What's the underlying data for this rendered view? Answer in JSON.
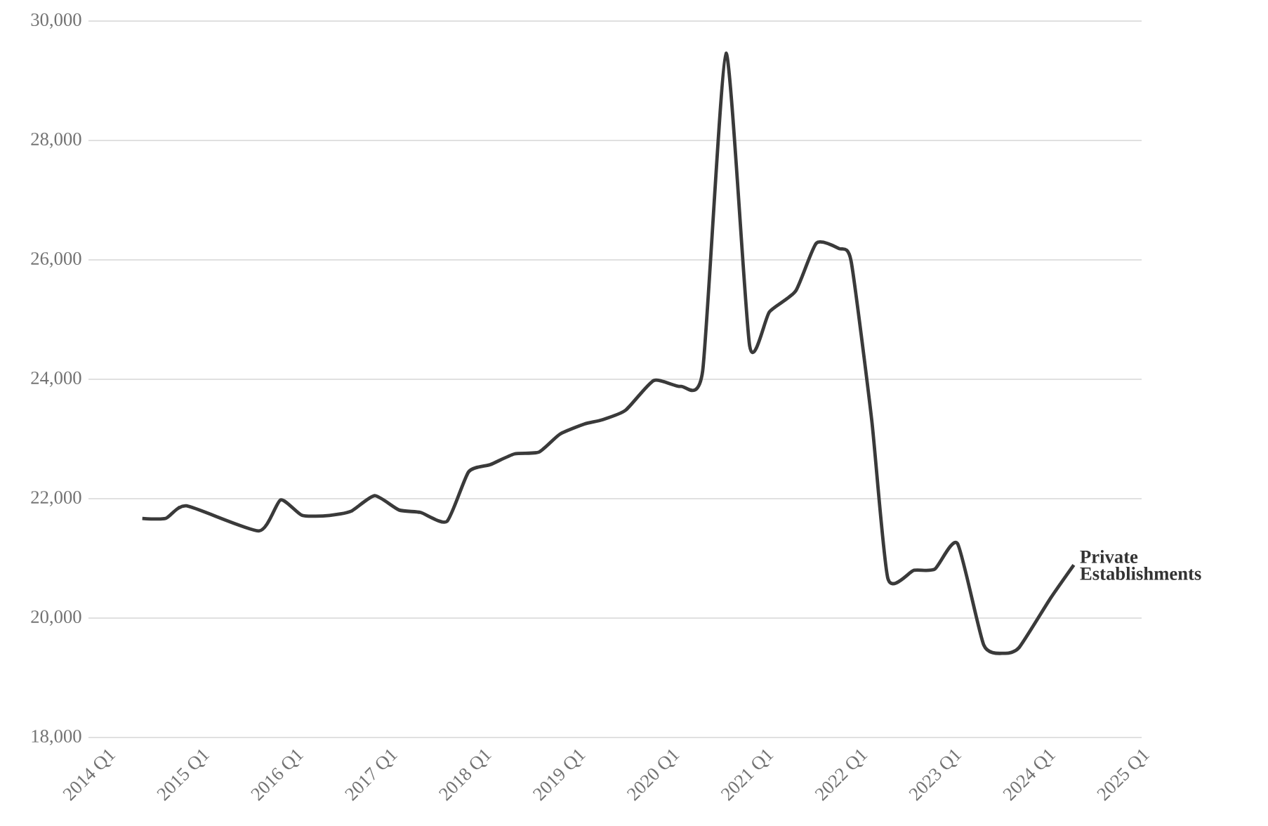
{
  "chart_data": {
    "type": "line",
    "series": [
      {
        "name": "Private Establishments",
        "color": "#3a3a3a",
        "x": [
          "2014-05-16",
          "2014-08-15",
          "2014-11-04",
          "2015-08-12",
          "2015-11-04",
          "2016-01-27",
          "2016-05-12",
          "2016-08-04",
          "2016-11-04",
          "2017-02-07",
          "2017-05-01",
          "2017-08-12",
          "2017-11-04",
          "2018-01-27",
          "2018-05-01",
          "2018-08-04",
          "2018-10-24",
          "2019-01-27",
          "2019-04-06",
          "2019-07-06",
          "2019-10-24",
          "2020-02-07",
          "2020-05-01",
          "2020-07-31",
          "2020-10-31",
          "2021-01-16",
          "2021-04-28",
          "2021-07-17",
          "2021-10-13",
          "2021-11-29",
          "2022-02-17",
          "2022-04-21",
          "2022-07-31",
          "2022-10-20",
          "2023-01-16",
          "2023-04-28",
          "2023-07-17",
          "2023-09-13",
          "2024-01-12",
          "2024-04-12"
        ],
        "values": [
          21670,
          21670,
          21880,
          21460,
          21980,
          21720,
          21720,
          21790,
          22050,
          21810,
          21770,
          21620,
          22450,
          22570,
          22750,
          22780,
          23080,
          23250,
          23320,
          23480,
          23980,
          23880,
          24140,
          29460,
          24560,
          25130,
          25480,
          26280,
          26190,
          25980,
          23320,
          20660,
          20800,
          20820,
          21250,
          19550,
          19410,
          19510,
          20330,
          20890
        ]
      }
    ],
    "xlim": [
      "2013-10-19",
      "2025-01-01"
    ],
    "xticks": [
      {
        "value": "2014-01-01",
        "label": "2014 Q1"
      },
      {
        "value": "2015-01-01",
        "label": "2015 Q1"
      },
      {
        "value": "2016-01-01",
        "label": "2016 Q1"
      },
      {
        "value": "2017-01-01",
        "label": "2017 Q1"
      },
      {
        "value": "2018-01-01",
        "label": "2018 Q1"
      },
      {
        "value": "2019-01-01",
        "label": "2019 Q1"
      },
      {
        "value": "2020-01-01",
        "label": "2020 Q1"
      },
      {
        "value": "2021-01-01",
        "label": "2021 Q1"
      },
      {
        "value": "2022-01-01",
        "label": "2022 Q1"
      },
      {
        "value": "2023-01-01",
        "label": "2023 Q1"
      },
      {
        "value": "2024-01-01",
        "label": "2024 Q1"
      },
      {
        "value": "2025-01-01",
        "label": "2025 Q1"
      }
    ],
    "ylim": [
      18000,
      30000
    ],
    "yticks": [
      {
        "value": 18000,
        "label": "18,000"
      },
      {
        "value": 20000,
        "label": "20,000"
      },
      {
        "value": 22000,
        "label": "22,000"
      },
      {
        "value": 24000,
        "label": "24,000"
      },
      {
        "value": 26000,
        "label": "26,000"
      },
      {
        "value": 28000,
        "label": "28,000"
      },
      {
        "value": 30000,
        "label": "30,000"
      }
    ],
    "grid": "y"
  }
}
